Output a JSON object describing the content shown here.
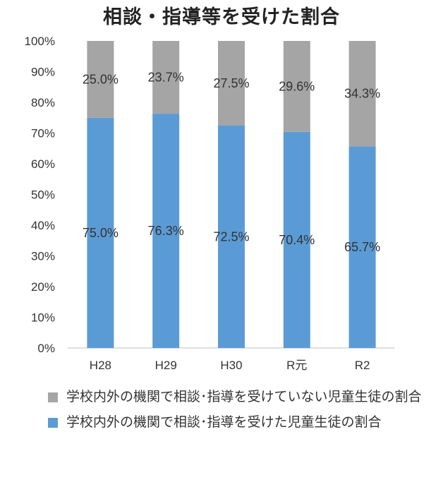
{
  "title": "相談・指導等を受けた割合",
  "colors": {
    "received": "#5b9bd5",
    "not_received": "#a5a5a5",
    "axis": "#bfbfbf"
  },
  "legend": [
    {
      "label": "学校内外の機関で相談･指導を受けていない児童生徒の割合",
      "color": "#a5a5a5"
    },
    {
      "label": "学校内外の機関で相談･指導を受けた児童生徒の割合",
      "color": "#5b9bd5"
    }
  ],
  "chart_data": {
    "type": "bar",
    "stacked": true,
    "title": "相談・指導等を受けた割合",
    "categories": [
      "H28",
      "H29",
      "H30",
      "R元",
      "R2"
    ],
    "series": [
      {
        "name": "学校内外の機関で相談･指導を受けた児童生徒の割合",
        "values": [
          75.0,
          76.3,
          72.5,
          70.4,
          65.7
        ],
        "color": "#5b9bd5"
      },
      {
        "name": "学校内外の機関で相談･指導を受けていない児童生徒の割合",
        "values": [
          25.0,
          23.7,
          27.5,
          29.6,
          34.3
        ],
        "color": "#a5a5a5"
      }
    ],
    "data_labels": {
      "received": [
        "75.0%",
        "76.3%",
        "72.5%",
        "70.4%",
        "65.7%"
      ],
      "not_received": [
        "25.0%",
        "23.7%",
        "27.5%",
        "29.6%",
        "34.3%"
      ]
    },
    "y_ticks": [
      "0%",
      "10%",
      "20%",
      "30%",
      "40%",
      "50%",
      "60%",
      "70%",
      "80%",
      "90%",
      "100%"
    ],
    "ylim": [
      0,
      100
    ],
    "grid": false,
    "legend_position": "bottom"
  }
}
